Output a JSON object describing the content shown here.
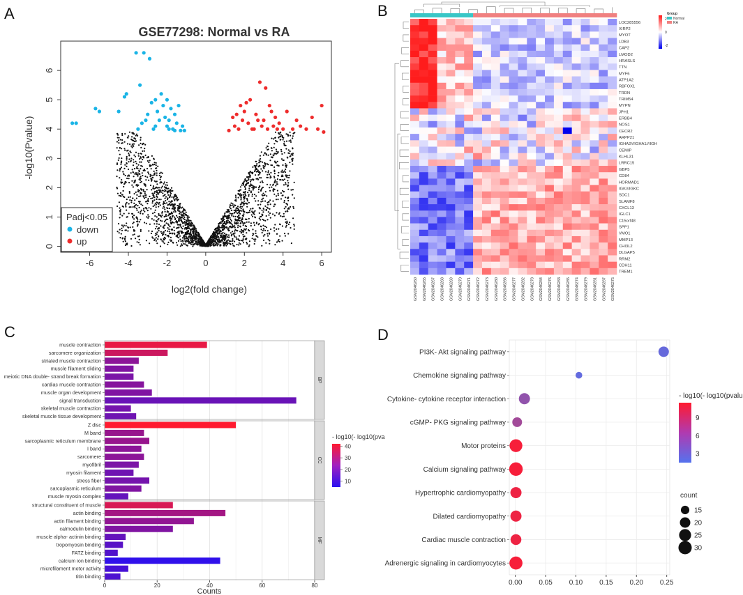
{
  "panels": {
    "a": "A",
    "b": "B",
    "c": "C",
    "d": "D"
  },
  "colors": {
    "down": "#1ab4e6",
    "up": "#ee2c2c",
    "ns": "#111111",
    "heat_high": "#ff1c1c",
    "heat_mid": "#ffffff",
    "heat_low": "#0000ee",
    "normal": "#39c6c6",
    "ra": "#f08080",
    "go_high": "#ff1a30",
    "go_low": "#2a10f0",
    "kegg_high": "#ff1a30",
    "kegg_low": "#5572ee"
  },
  "chart_data": [
    {
      "id": "volcano",
      "type": "scatter",
      "title": "GSE77298: Normal vs RA",
      "xlabel": "log2(fold change)",
      "ylabel": "-log10(Pvalue)",
      "xlim": [
        -7.5,
        6.5
      ],
      "ylim": [
        -0.2,
        7.0
      ],
      "xticks": [
        "-6",
        "-4",
        "-2",
        "0",
        "2",
        "4",
        "6"
      ],
      "yticks": [
        "0",
        "1",
        "2",
        "3",
        "4",
        "5",
        "6"
      ],
      "legend": {
        "title": "Padj<0.05",
        "items": [
          "down",
          "up"
        ],
        "position": "bottom-left"
      },
      "down_points": [
        [
          -6.9,
          4.2
        ],
        [
          -6.7,
          4.2
        ],
        [
          -5.7,
          4.7
        ],
        [
          -5.5,
          4.6
        ],
        [
          -4.5,
          4.6
        ],
        [
          -4.2,
          5.1
        ],
        [
          -4.1,
          5.2
        ],
        [
          -3.6,
          6.6
        ],
        [
          -3.2,
          6.6
        ],
        [
          -3.4,
          5.5
        ],
        [
          -2.9,
          6.4
        ],
        [
          -3.3,
          4.2
        ],
        [
          -3.0,
          4.5
        ],
        [
          -2.8,
          4.9
        ],
        [
          -2.6,
          4.1
        ],
        [
          -2.5,
          4.6
        ],
        [
          -2.3,
          5.2
        ],
        [
          -2.1,
          4.4
        ],
        [
          -2.0,
          5.0
        ],
        [
          -1.9,
          4.3
        ],
        [
          -1.8,
          4.7
        ],
        [
          -1.7,
          4.0
        ],
        [
          -1.6,
          4.5
        ],
        [
          -1.5,
          4.2
        ],
        [
          -1.4,
          4.8
        ],
        [
          -1.3,
          3.95
        ],
        [
          -1.2,
          4.1
        ],
        [
          -2.7,
          4.0
        ],
        [
          -2.4,
          4.3
        ],
        [
          -2.2,
          4.8
        ],
        [
          -3.5,
          4.0
        ],
        [
          -3.1,
          4.3
        ],
        [
          -1.9,
          4.0
        ],
        [
          -1.6,
          3.95
        ],
        [
          -2.0,
          4.1
        ],
        [
          -1.1,
          3.95
        ],
        [
          -2.6,
          5.0
        ]
      ],
      "up_points": [
        [
          1.5,
          4.1
        ],
        [
          1.7,
          4.0
        ],
        [
          1.9,
          4.3
        ],
        [
          2.0,
          4.6
        ],
        [
          2.2,
          4.2
        ],
        [
          2.3,
          5.0
        ],
        [
          2.5,
          4.0
        ],
        [
          2.6,
          4.5
        ],
        [
          2.8,
          5.6
        ],
        [
          3.0,
          4.3
        ],
        [
          3.1,
          5.4
        ],
        [
          3.3,
          4.8
        ],
        [
          3.5,
          4.1
        ],
        [
          3.6,
          4.4
        ],
        [
          3.8,
          4.2
        ],
        [
          4.0,
          4.0
        ],
        [
          4.2,
          4.6
        ],
        [
          4.5,
          4.0
        ],
        [
          4.7,
          4.3
        ],
        [
          5.2,
          4.0
        ],
        [
          5.5,
          4.4
        ],
        [
          6.0,
          4.8
        ],
        [
          6.1,
          3.9
        ],
        [
          5.8,
          4.0
        ],
        [
          2.1,
          4.9
        ],
        [
          2.7,
          4.3
        ],
        [
          3.2,
          4.0
        ],
        [
          4.9,
          4.1
        ],
        [
          1.2,
          3.95
        ],
        [
          1.4,
          4.4
        ],
        [
          2.4,
          4.0
        ],
        [
          3.4,
          4.6
        ],
        [
          1.8,
          4.8
        ],
        [
          2.9,
          4.1
        ],
        [
          3.7,
          4.0
        ],
        [
          1.6,
          4.5
        ]
      ],
      "ns_shape": "volcano cloud of non-significant genes"
    },
    {
      "id": "heatmap",
      "type": "heatmap",
      "legend_group_title": "Group",
      "group_labels": [
        "Normal",
        "RA"
      ],
      "scale_labels": [
        "2",
        "0",
        "-2"
      ],
      "rows": [
        "LOC285556",
        "XIRP2",
        "MYOT",
        "LDB3",
        "CAP2",
        "LMOD2",
        "HRASLS",
        "TTN",
        "MYF6",
        "ATP1A2",
        "RBFOX1",
        "TRDN",
        "TRIM54",
        "MYPN",
        "JPH1",
        "ERBB4",
        "NOS1",
        "CECR2",
        "ARPP21",
        "IGHA2///IGHA1///IGH",
        "CEMIP",
        "KLHL31",
        "LRRC15",
        "GBP5",
        "CD84",
        "HORMAD1",
        "IGK///IGKC",
        "SDC1",
        "SLAMF8",
        "CXCL13",
        "IGLC1",
        "C15orf48",
        "SPP1",
        "VMO1",
        "MMP13",
        "CHI3L2",
        "DLGAP5",
        "RRM2",
        "CDH11",
        "TREM1"
      ],
      "columns": [
        "GSM2046260",
        "GSM2046265",
        "GSM2046267",
        "GSM2046268",
        "GSM2046269",
        "GSM2046270",
        "GSM2046271",
        "GSM2046272",
        "GSM2046273",
        "GSM2046280",
        "GSM2046266",
        "GSM2046277",
        "GSM2046282",
        "GSM2046278",
        "GSM2046284",
        "GSM2046276",
        "GSM2046283",
        "GSM2046285",
        "GSM2046274",
        "GSM2046279",
        "GSM2046281",
        "GSM2046287",
        "GSM2046275"
      ],
      "normal_count": 7,
      "range": [
        -2,
        2
      ]
    },
    {
      "id": "go_bar",
      "type": "bar",
      "orientation": "horizontal",
      "xlabel": "Counts",
      "xlim": [
        0,
        80
      ],
      "xticks": [
        "0",
        "20",
        "40",
        "60",
        "80"
      ],
      "legend_title": "- log10(- log10(pva",
      "legend_ticks": [
        "40",
        "30",
        "20",
        "10"
      ],
      "color_range": [
        5,
        42
      ],
      "groups": [
        {
          "name": "BP",
          "terms": [
            {
              "label": "muscle contraction",
              "value": 39,
              "score": 38
            },
            {
              "label": "sarcomere organization",
              "value": 24,
              "score": 33
            },
            {
              "label": "striated muscle contraction",
              "value": 13,
              "score": 22
            },
            {
              "label": "muscle filament sliding",
              "value": 11,
              "score": 20
            },
            {
              "label": "meiotic DNA double- strand break formation",
              "value": 11,
              "score": 19
            },
            {
              "label": "cardiac muscle contraction",
              "value": 15,
              "score": 21
            },
            {
              "label": "muscle organ development",
              "value": 18,
              "score": 20
            },
            {
              "label": "signal transduction",
              "value": 73,
              "score": 16
            },
            {
              "label": "skeletal muscle contraction",
              "value": 10,
              "score": 18
            },
            {
              "label": "skeletal muscle tissue development",
              "value": 12,
              "score": 17
            }
          ]
        },
        {
          "name": "CC",
          "terms": [
            {
              "label": "Z disc",
              "value": 50,
              "score": 42
            },
            {
              "label": "M band",
              "value": 15,
              "score": 24
            },
            {
              "label": "sarcoplasmic reticulum membrane",
              "value": 17,
              "score": 24
            },
            {
              "label": "I band",
              "value": 14,
              "score": 22
            },
            {
              "label": "sarcomere",
              "value": 15,
              "score": 22
            },
            {
              "label": "myofibril",
              "value": 13,
              "score": 19
            },
            {
              "label": "myosin filament",
              "value": 11,
              "score": 17
            },
            {
              "label": "stress fiber",
              "value": 17,
              "score": 18
            },
            {
              "label": "sarcoplasmic reticulum",
              "value": 14,
              "score": 20
            },
            {
              "label": "muscle myosin complex",
              "value": 9,
              "score": 15
            }
          ]
        },
        {
          "name": "MF",
          "terms": [
            {
              "label": "structural constituent of muscle",
              "value": 26,
              "score": 35
            },
            {
              "label": "actin binding",
              "value": 46,
              "score": 26
            },
            {
              "label": "actin filament binding",
              "value": 34,
              "score": 23
            },
            {
              "label": "calmodulin binding",
              "value": 26,
              "score": 20
            },
            {
              "label": "muscle alpha- actinin binding",
              "value": 8,
              "score": 15
            },
            {
              "label": "tropomyosin binding",
              "value": 7,
              "score": 13
            },
            {
              "label": "FATZ binding",
              "value": 5,
              "score": 12
            },
            {
              "label": "calcium ion binding",
              "value": 44,
              "score": 6
            },
            {
              "label": "microfilament motor activity",
              "value": 9,
              "score": 10
            },
            {
              "label": "titin binding",
              "value": 6,
              "score": 11
            }
          ]
        }
      ]
    },
    {
      "id": "kegg_dot",
      "type": "scatter",
      "xlim": [
        -0.01,
        0.255
      ],
      "xticks": [
        "0.00",
        "0.05",
        "0.10",
        "0.15",
        "0.20",
        "0.25"
      ],
      "color_legend_title": "- log10(- log10(pvalue))",
      "color_legend_ticks": [
        "9",
        "6",
        "3"
      ],
      "color_range": [
        1.5,
        11.5
      ],
      "size_legend_title": "count",
      "size_legend_values": [
        "15",
        "20",
        "25",
        "30"
      ],
      "points": [
        {
          "label": "PI3K- Akt signaling pathway",
          "x": 0.245,
          "count": 20,
          "score": 2.5
        },
        {
          "label": "Chemokine signaling pathway",
          "x": 0.105,
          "count": 12,
          "score": 2.3
        },
        {
          "label": "Cytokine- cytokine receptor interaction",
          "x": 0.015,
          "count": 22,
          "score": 5.0
        },
        {
          "label": "cGMP- PKG signaling pathway",
          "x": 0.003,
          "count": 18,
          "score": 6.0
        },
        {
          "label": "Motor proteins",
          "x": 0.001,
          "count": 28,
          "score": 11
        },
        {
          "label": "Calcium signaling pathway",
          "x": 0.001,
          "count": 31,
          "score": 11
        },
        {
          "label": "Hypertrophic cardiomyopathy",
          "x": 0.001,
          "count": 22,
          "score": 10.5
        },
        {
          "label": "Dilated cardiomyopathy",
          "x": 0.001,
          "count": 22,
          "score": 10.5
        },
        {
          "label": "Cardiac muscle contraction",
          "x": 0.001,
          "count": 21,
          "score": 10.5
        },
        {
          "label": "Adrenergic signaling in cardiomyocytes",
          "x": 0.001,
          "count": 29,
          "score": 11
        }
      ]
    }
  ]
}
